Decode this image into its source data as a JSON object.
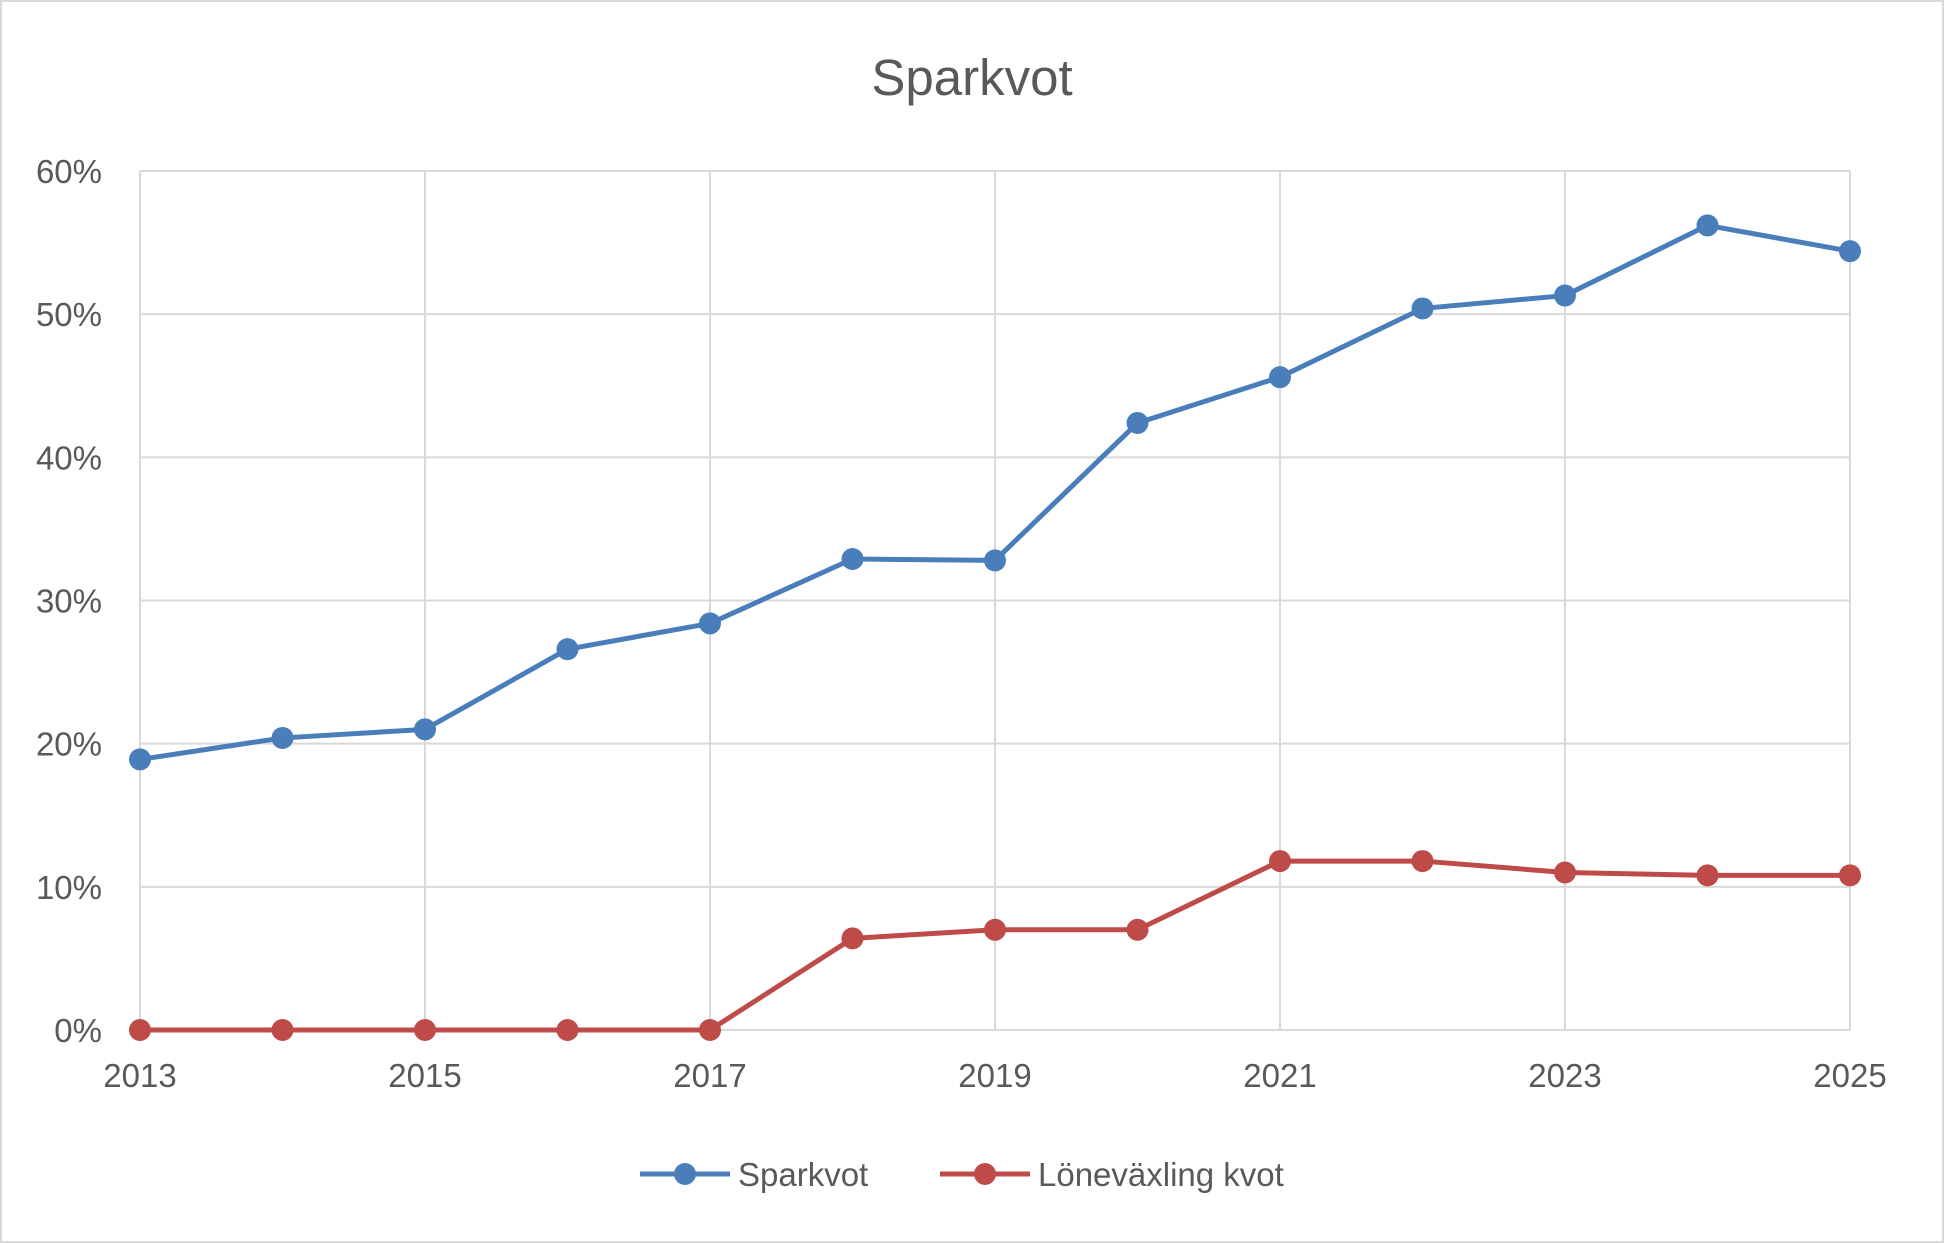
{
  "chart_data": {
    "type": "line",
    "title": "Sparkvot",
    "xlabel": "",
    "ylabel": "",
    "x": [
      2013,
      2014,
      2015,
      2016,
      2017,
      2018,
      2019,
      2020,
      2021,
      2022,
      2023,
      2024,
      2025
    ],
    "x_tick_labels": [
      "2013",
      "2015",
      "2017",
      "2019",
      "2021",
      "2023",
      "2025"
    ],
    "y_tick_labels": [
      "0%",
      "10%",
      "20%",
      "30%",
      "40%",
      "50%",
      "60%"
    ],
    "ylim": [
      0,
      60
    ],
    "grid": true,
    "legend_position": "bottom",
    "series": [
      {
        "name": "Sparkvot",
        "color": "#4A7EBB",
        "values": [
          18.9,
          20.4,
          21.0,
          26.6,
          28.4,
          32.9,
          32.8,
          42.4,
          45.6,
          50.4,
          51.3,
          56.2,
          54.4
        ]
      },
      {
        "name": "Löneväxling kvot",
        "color": "#BE4B48",
        "values": [
          0,
          0,
          0,
          0,
          0,
          6.4,
          7.0,
          7.0,
          11.8,
          11.8,
          11.0,
          10.8,
          10.8
        ]
      }
    ]
  }
}
